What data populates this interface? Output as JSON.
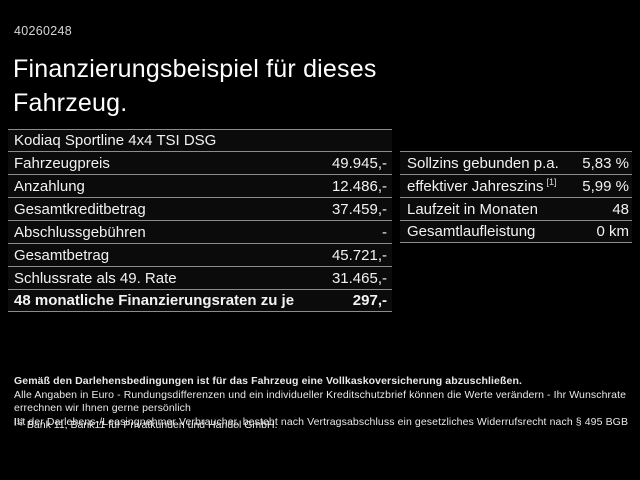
{
  "page": {
    "id_number": "40260248",
    "title_line1": "Finanzierungsbeispiel für dieses",
    "title_line2": "Fahrzeug.",
    "vehicle_model": "Kodiaq Sportline 4x4 TSI DSG"
  },
  "left_table": {
    "rows": [
      {
        "label": "Fahrzeugpreis",
        "value": "49.945,-"
      },
      {
        "label": "Anzahlung",
        "value": "12.486,-"
      },
      {
        "label": "Gesamtkreditbetrag",
        "value": "37.459,-"
      },
      {
        "label": "Abschlussgebühren",
        "value": "-"
      },
      {
        "label": "Gesamtbetrag",
        "value": "45.721,-"
      },
      {
        "label": "Schlussrate als 49. Rate",
        "value": "31.465,-"
      },
      {
        "label": "48 monatliche Finanzierungsraten zu je",
        "value": "297,-"
      }
    ]
  },
  "right_table": {
    "rows": [
      {
        "label": "Sollzins gebunden p.a.",
        "sup": "",
        "value": "5,83 %"
      },
      {
        "label": "effektiver Jahreszins",
        "sup": "[1]",
        "value": "5,99 %"
      },
      {
        "label": "Laufzeit in Monaten",
        "sup": "",
        "value": "48"
      },
      {
        "label": "Gesamtlaufleistung",
        "sup": "",
        "value": "0 km"
      }
    ]
  },
  "footer": {
    "line1": "Gemäß den Darlehensbedingungen ist für das Fahrzeug eine Vollkaskoversicherung abzuschließen.",
    "line2": "Alle Angaben in Euro - Rundungsdifferenzen und ein individueller Kreditschutzbrief können die Werte verändern - Ihr Wunschrate errechnen wir Ihnen gerne persönlich",
    "line3": "Ist der Darlehens-/Leasingnehmer Verbraucher, besteht nach Vertragsabschluss ein gesetzliches Widerrufsrecht nach § 495 BGB",
    "footnote_marker": "[1]",
    "footnote_text": "Bank 11, Bank11 für Privatkunden und Handel GmbH."
  },
  "colors": {
    "background": "#000000",
    "text": "#f2f2f2",
    "divider": "#8c8c8c"
  }
}
